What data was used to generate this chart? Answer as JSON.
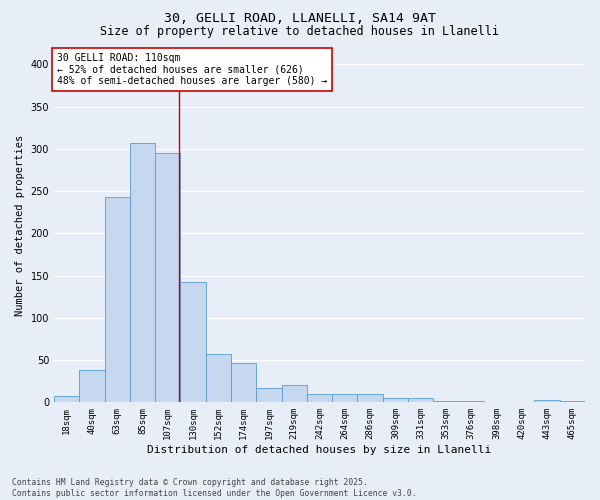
{
  "title1": "30, GELLI ROAD, LLANELLI, SA14 9AT",
  "title2": "Size of property relative to detached houses in Llanelli",
  "xlabel": "Distribution of detached houses by size in Llanelli",
  "ylabel": "Number of detached properties",
  "categories": [
    "18sqm",
    "40sqm",
    "63sqm",
    "85sqm",
    "107sqm",
    "130sqm",
    "152sqm",
    "174sqm",
    "197sqm",
    "219sqm",
    "242sqm",
    "264sqm",
    "286sqm",
    "309sqm",
    "331sqm",
    "353sqm",
    "376sqm",
    "398sqm",
    "420sqm",
    "443sqm",
    "465sqm"
  ],
  "values": [
    8,
    38,
    243,
    307,
    295,
    143,
    57,
    47,
    17,
    20,
    10,
    10,
    10,
    5,
    5,
    2,
    2,
    0,
    0,
    3,
    2
  ],
  "bar_color": "#c5d8f0",
  "bar_edge_color": "#5b9bd5",
  "background_color": "#e8eef8",
  "grid_color": "#ffffff",
  "annotation_text": "30 GELLI ROAD: 110sqm\n← 52% of detached houses are smaller (626)\n48% of semi-detached houses are larger (580) →",
  "annotation_box_facecolor": "#ffffff",
  "annotation_box_edgecolor": "#cc0000",
  "vline_color": "#cc0000",
  "vline_pos": 4.43,
  "ylim": [
    0,
    420
  ],
  "yticks": [
    0,
    50,
    100,
    150,
    200,
    250,
    300,
    350,
    400
  ],
  "footnote": "Contains HM Land Registry data © Crown copyright and database right 2025.\nContains public sector information licensed under the Open Government Licence v3.0.",
  "title_fontsize": 9.5,
  "subtitle_fontsize": 8.5,
  "axis_label_fontsize": 8,
  "tick_fontsize": 6.5,
  "annotation_fontsize": 7,
  "footnote_fontsize": 5.8,
  "ylabel_fontsize": 7.5
}
